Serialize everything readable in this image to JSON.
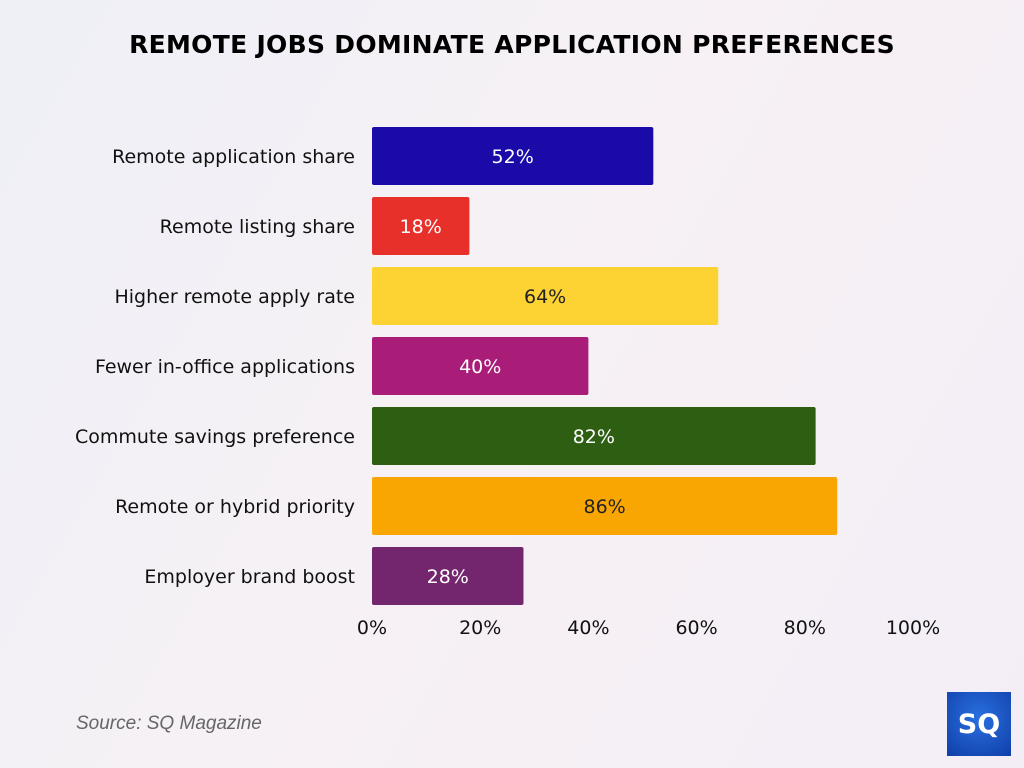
{
  "chart_data": {
    "type": "bar",
    "orientation": "horizontal",
    "title": "REMOTE JOBS DOMINATE APPLICATION PREFERENCES",
    "categories": [
      "Remote application share",
      "Remote listing share",
      "Higher remote apply rate",
      "Fewer in-office applications",
      "Commute savings preference",
      "Remote or hybrid priority",
      "Employer brand boost"
    ],
    "values": [
      52,
      18,
      64,
      40,
      82,
      86,
      28
    ],
    "data_labels": [
      "52%",
      "18%",
      "64%",
      "40%",
      "82%",
      "86%",
      "28%"
    ],
    "colors": [
      "#1a0aa8",
      "#e8302a",
      "#fdd233",
      "#a91c78",
      "#2e5e12",
      "#f9a602",
      "#73266e"
    ],
    "label_colors": [
      "#ffffff",
      "#ffffff",
      "#222222",
      "#ffffff",
      "#ffffff",
      "#222222",
      "#ffffff"
    ],
    "xlim": [
      0,
      100
    ],
    "x_ticks": [
      "0%",
      "20%",
      "40%",
      "60%",
      "80%",
      "100%"
    ],
    "grid": false,
    "xlabel": "",
    "ylabel": ""
  },
  "source": "Source: SQ Magazine",
  "logo": "SQ"
}
